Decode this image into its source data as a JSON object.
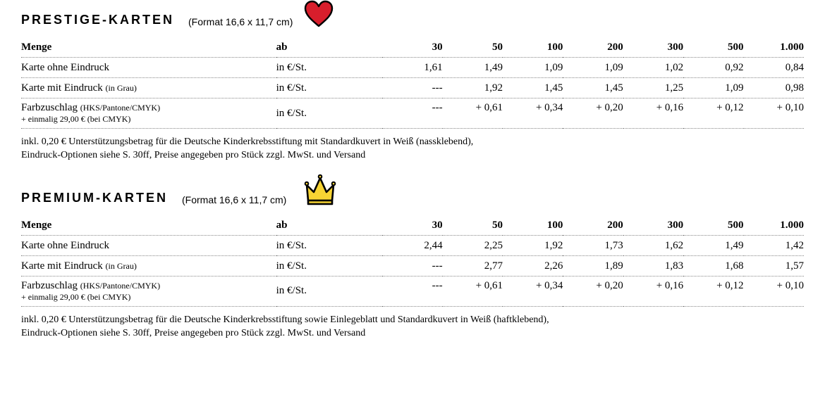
{
  "sections": [
    {
      "key": "prestige",
      "title": "PRESTIGE-KARTEN",
      "format": "(Format 16,6 x 11,7 cm)",
      "icon": "heart",
      "header_label": "Menge",
      "header_unit": "ab",
      "quantities": [
        "30",
        "50",
        "100",
        "200",
        "300",
        "500",
        "1.000"
      ],
      "rows": [
        {
          "label": "Karte ohne Eindruck",
          "sub": "",
          "sub2": "",
          "unit": "in €/St.",
          "cells": [
            "1,61",
            "1,49",
            "1,09",
            "1,09",
            "1,02",
            "0,92",
            "0,84"
          ]
        },
        {
          "label": "Karte mit Eindruck ",
          "sub": "(in Grau)",
          "sub2": "",
          "unit": "in €/St.",
          "cells": [
            "---",
            "1,92",
            "1,45",
            "1,45",
            "1,25",
            "1,09",
            "0,98"
          ]
        },
        {
          "label": "Farbzuschlag ",
          "sub": "(HKS/Pantone/CMYK)",
          "sub2": "+ einmalig 29,00 € (bei CMYK)",
          "unit": "in €/St.",
          "cells": [
            "---",
            "+ 0,61",
            "+ 0,34",
            "+ 0,20",
            "+ 0,16",
            "+ 0,12",
            "+ 0,10"
          ]
        }
      ],
      "footnote": "inkl. 0,20 € Unterstützungsbetrag für die Deutsche Kinderkrebsstiftung mit Standardkuvert in Weiß (nassklebend),\nEindruck-Optionen siehe S. 30ff, Preise angegeben pro Stück zzgl. MwSt. und Versand"
    },
    {
      "key": "premium",
      "title": "PREMIUM-KARTEN",
      "format": "(Format 16,6 x 11,7 cm)",
      "icon": "crown",
      "header_label": "Menge",
      "header_unit": "ab",
      "quantities": [
        "30",
        "50",
        "100",
        "200",
        "300",
        "500",
        "1.000"
      ],
      "rows": [
        {
          "label": "Karte ohne Eindruck",
          "sub": "",
          "sub2": "",
          "unit": "in €/St.",
          "cells": [
            "2,44",
            "2,25",
            "1,92",
            "1,73",
            "1,62",
            "1,49",
            "1,42"
          ]
        },
        {
          "label": "Karte mit Eindruck ",
          "sub": "(in Grau)",
          "sub2": "",
          "unit": "in €/St.",
          "cells": [
            "---",
            "2,77",
            "2,26",
            "1,89",
            "1,83",
            "1,68",
            "1,57"
          ]
        },
        {
          "label": "Farbzuschlag ",
          "sub": "(HKS/Pantone/CMYK)",
          "sub2": "+ einmalig 29,00 € (bei CMYK)",
          "unit": "in €/St.",
          "cells": [
            "---",
            "+ 0,61",
            "+ 0,34",
            "+ 0,20",
            "+ 0,16",
            "+ 0,12",
            "+ 0,10"
          ]
        }
      ],
      "footnote": "inkl. 0,20 € Unterstützungsbetrag für die Deutsche Kinderkrebsstiftung sowie Einlegeblatt und Standardkuvert in Weiß (haftklebend),\nEindruck-Optionen siehe S. 30ff, Preise angegeben pro Stück zzgl. MwSt. und Versand"
    }
  ],
  "colors": {
    "heart_fill": "#d81e2c",
    "heart_stroke": "#000000",
    "crown_fill": "#f7d433",
    "crown_stroke": "#000000"
  }
}
